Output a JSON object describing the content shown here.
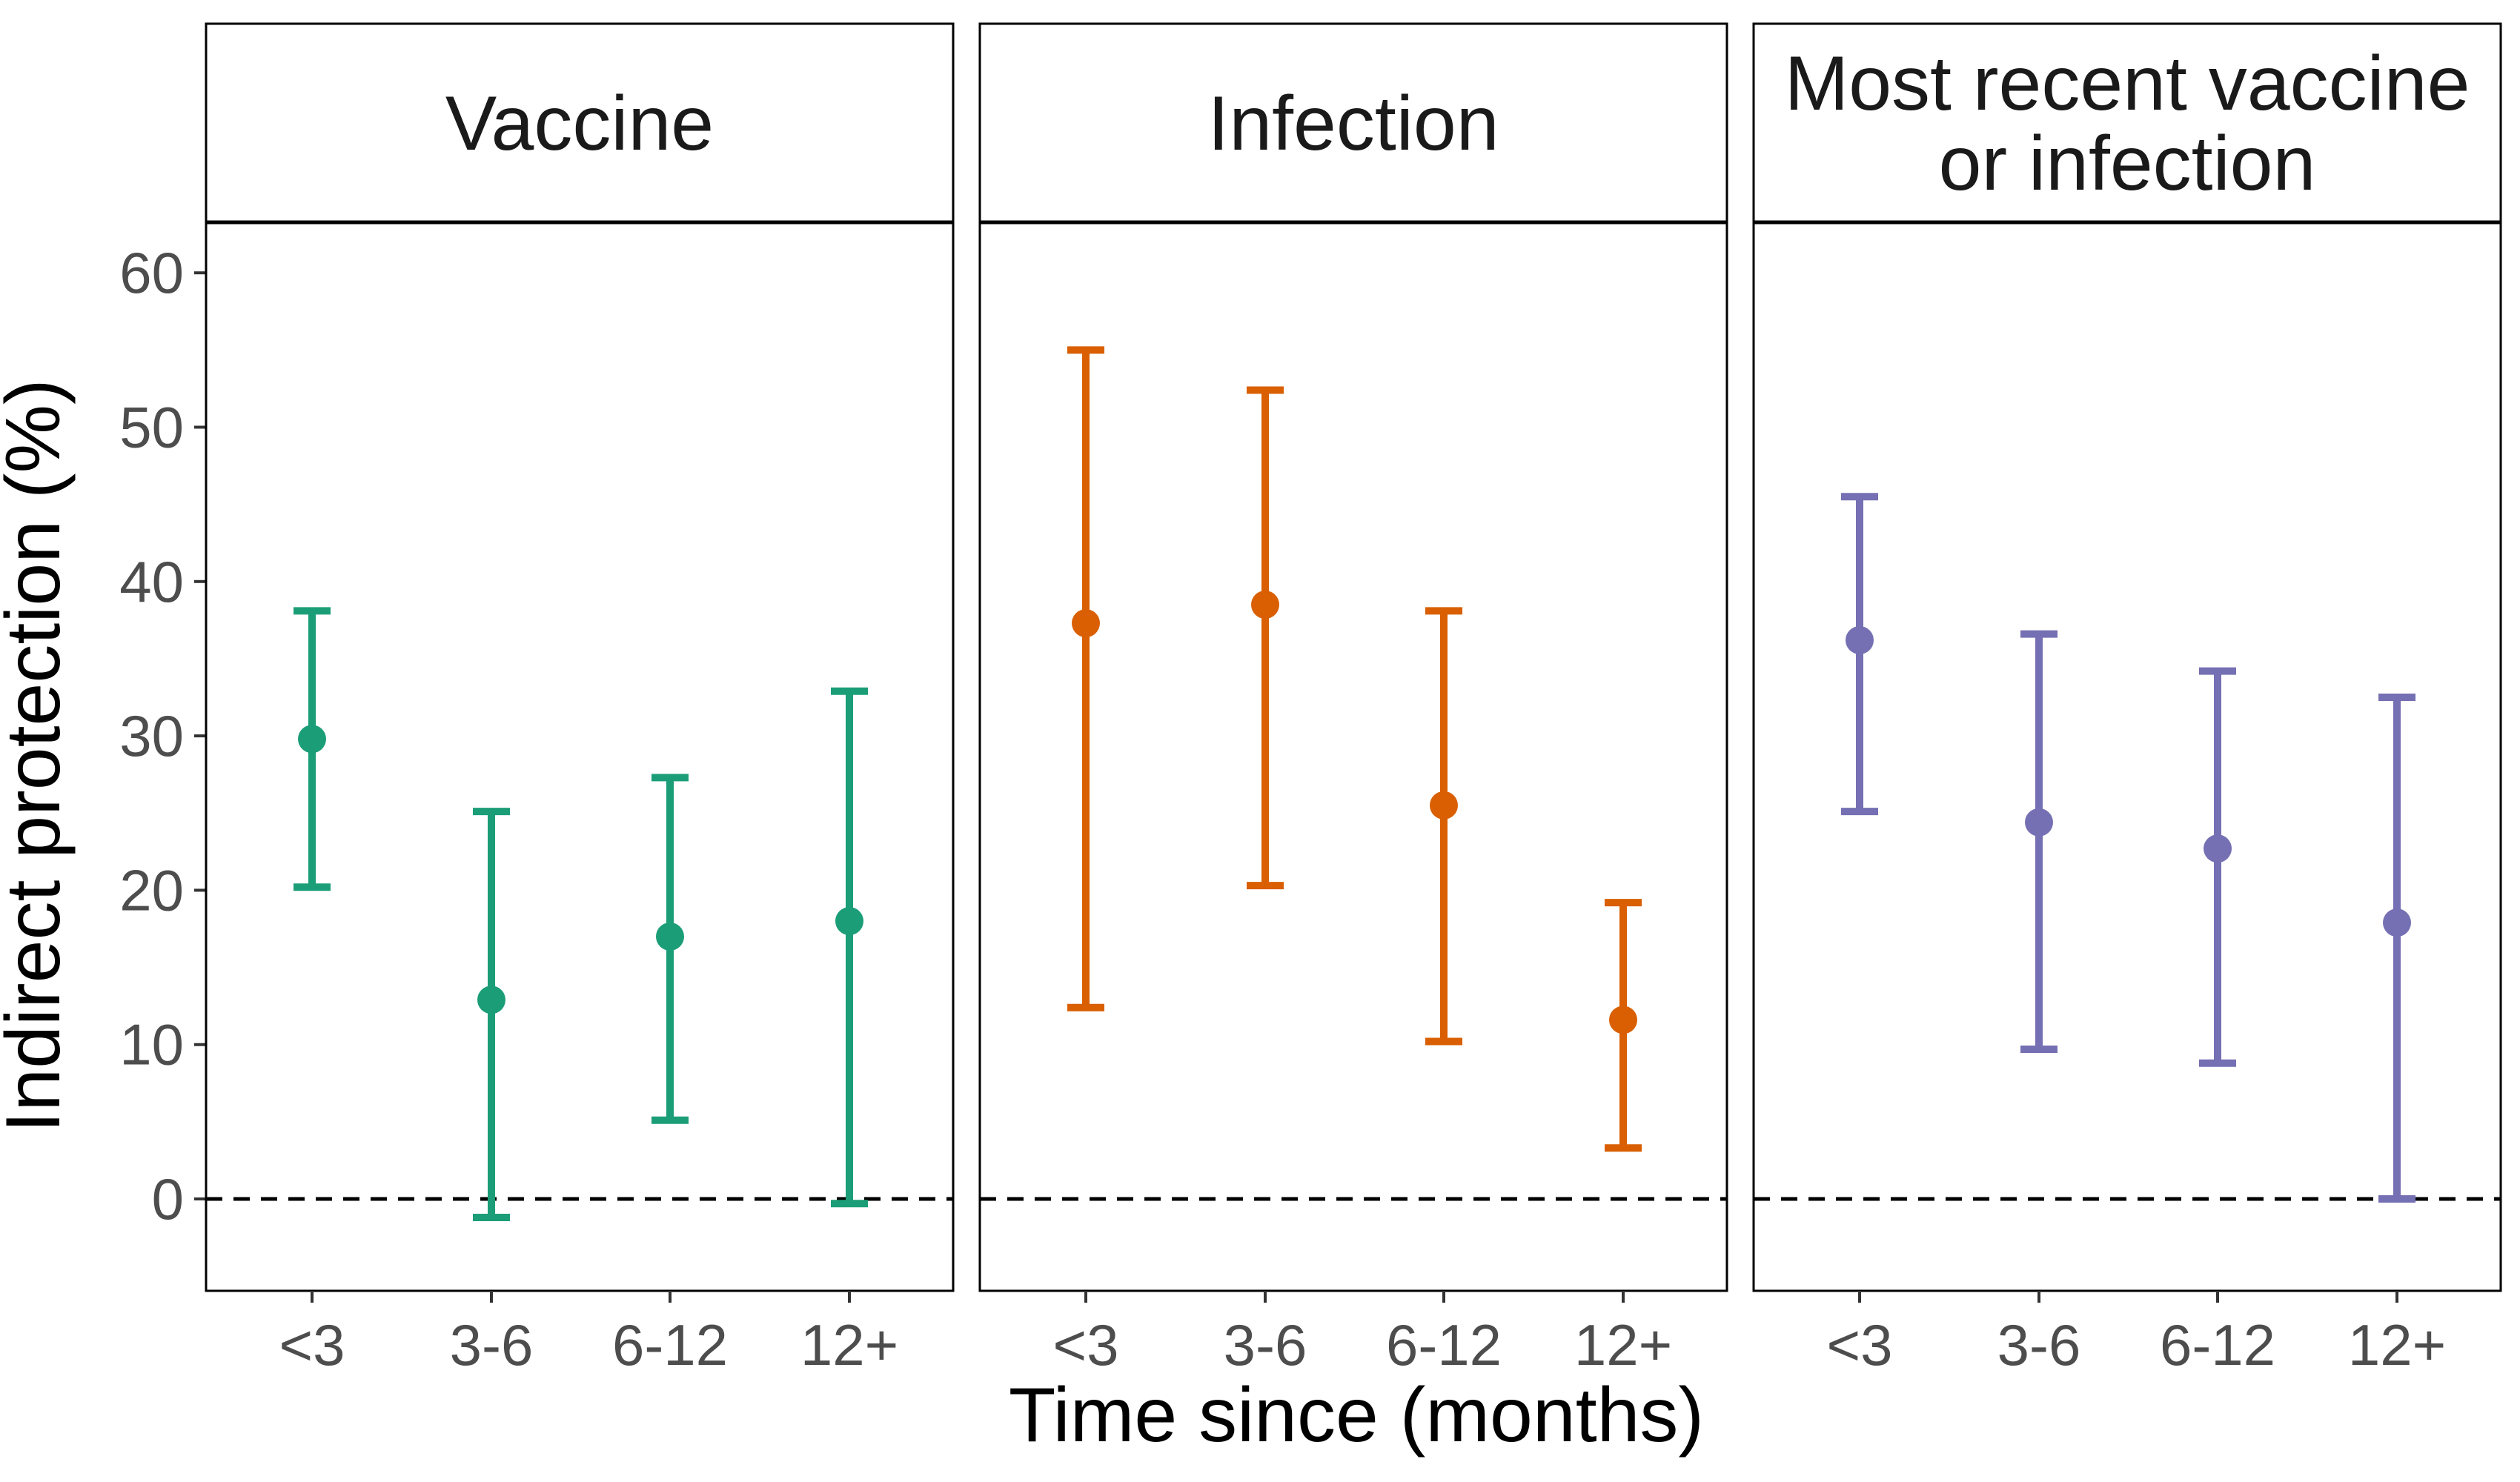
{
  "chart_data": {
    "type": "scatter",
    "subtype": "point-range faceted",
    "xlabel": "Time since (months)",
    "ylabel": "Indirect protection (%)",
    "ylim": [
      -6,
      63
    ],
    "yticks": [
      0,
      10,
      20,
      30,
      40,
      50,
      60
    ],
    "categories": [
      "<3",
      "3-6",
      "6-12",
      "12+"
    ],
    "reference_line": {
      "y": 0,
      "style": "dashed"
    },
    "grid": false,
    "legend": "none",
    "panels": [
      {
        "title": "Vaccine",
        "color": "#1b9e77",
        "points": [
          {
            "x": "<3",
            "y": 29.8,
            "lower": 20.2,
            "upper": 38.1
          },
          {
            "x": "3-6",
            "y": 12.9,
            "lower": -1.2,
            "upper": 25.1
          },
          {
            "x": "6-12",
            "y": 17.0,
            "lower": 5.1,
            "upper": 27.3
          },
          {
            "x": "12+",
            "y": 18.0,
            "lower": -0.3,
            "upper": 32.9
          }
        ]
      },
      {
        "title": "Infection",
        "color": "#d95f02",
        "points": [
          {
            "x": "<3",
            "y": 37.3,
            "lower": 12.4,
            "upper": 55.0
          },
          {
            "x": "3-6",
            "y": 38.5,
            "lower": 20.3,
            "upper": 52.4
          },
          {
            "x": "6-12",
            "y": 25.5,
            "lower": 10.2,
            "upper": 38.1
          },
          {
            "x": "12+",
            "y": 11.6,
            "lower": 3.3,
            "upper": 19.2
          }
        ]
      },
      {
        "title": "Most recent vaccine\nor infection",
        "color": "#7570b3",
        "points": [
          {
            "x": "<3",
            "y": 36.2,
            "lower": 25.1,
            "upper": 45.5
          },
          {
            "x": "3-6",
            "y": 24.4,
            "lower": 9.7,
            "upper": 36.6
          },
          {
            "x": "6-12",
            "y": 22.7,
            "lower": 8.8,
            "upper": 34.2
          },
          {
            "x": "12+",
            "y": 17.9,
            "lower": 0.0,
            "upper": 32.5
          }
        ]
      }
    ]
  }
}
